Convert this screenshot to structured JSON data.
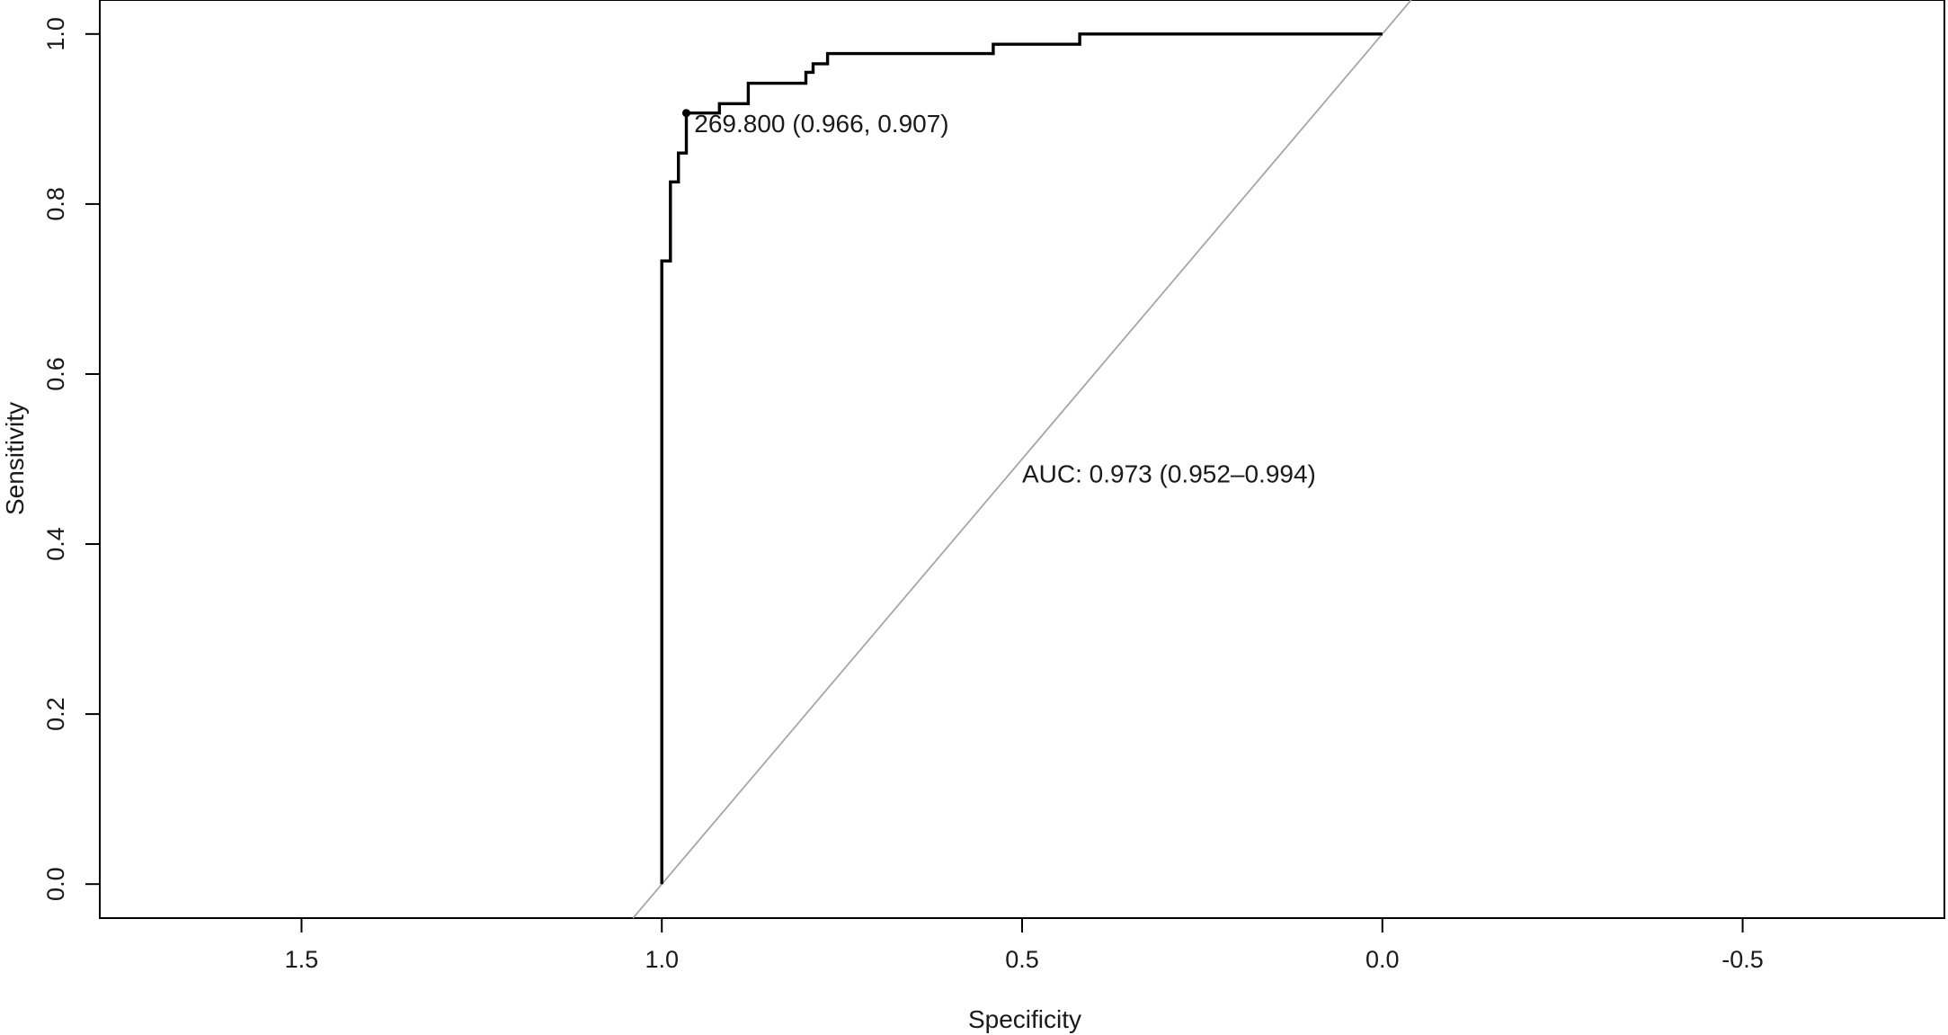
{
  "chart_data": {
    "type": "line",
    "xlabel": "Specificity",
    "ylabel": "Sensitivity",
    "xlim": [
      1.78,
      -0.78
    ],
    "x_reversed": true,
    "ylim": [
      -0.04,
      1.04
    ],
    "x_ticks": [
      {
        "value": 1.5,
        "label": "1.5"
      },
      {
        "value": 1.0,
        "label": "1.0"
      },
      {
        "value": 0.5,
        "label": "0.5"
      },
      {
        "value": 0.0,
        "label": "0.0"
      },
      {
        "value": -0.5,
        "label": "-0.5"
      }
    ],
    "y_ticks": [
      {
        "value": 0.0,
        "label": "0.0"
      },
      {
        "value": 0.2,
        "label": "0.2"
      },
      {
        "value": 0.4,
        "label": "0.4"
      },
      {
        "value": 0.6,
        "label": "0.6"
      },
      {
        "value": 0.8,
        "label": "0.8"
      },
      {
        "value": 1.0,
        "label": "1.0"
      }
    ],
    "grid": false,
    "series": [
      {
        "kind": "roc-curve",
        "color": "#000000",
        "points": [
          [
            1.0,
            0.0
          ],
          [
            1.0,
            0.733
          ],
          [
            0.988,
            0.733
          ],
          [
            0.988,
            0.826
          ],
          [
            0.977,
            0.826
          ],
          [
            0.977,
            0.86
          ],
          [
            0.966,
            0.86
          ],
          [
            0.966,
            0.907
          ],
          [
            0.92,
            0.907
          ],
          [
            0.92,
            0.918
          ],
          [
            0.88,
            0.918
          ],
          [
            0.88,
            0.942
          ],
          [
            0.8,
            0.942
          ],
          [
            0.8,
            0.955
          ],
          [
            0.79,
            0.955
          ],
          [
            0.79,
            0.965
          ],
          [
            0.77,
            0.965
          ],
          [
            0.77,
            0.977
          ],
          [
            0.54,
            0.977
          ],
          [
            0.54,
            0.988
          ],
          [
            0.42,
            0.988
          ],
          [
            0.42,
            1.0
          ],
          [
            0.0,
            1.0
          ]
        ]
      },
      {
        "kind": "reference-diagonal",
        "color": "#a6a6a6",
        "points": [
          [
            1.04,
            -0.04
          ],
          [
            -0.04,
            1.04
          ]
        ]
      }
    ],
    "best_threshold_point": {
      "x": 0.966,
      "y": 0.907
    },
    "annotations": [
      {
        "text": "269.800 (0.966, 0.907)",
        "x": 0.955,
        "y": 0.895
      },
      {
        "text": "AUC: 0.973 (0.952–0.994)",
        "x": 0.5,
        "y": 0.483
      }
    ]
  }
}
